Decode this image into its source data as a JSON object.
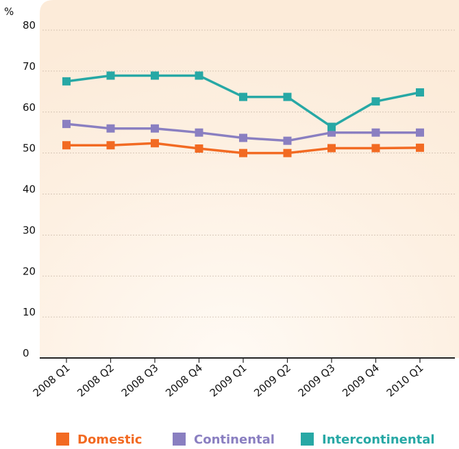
{
  "chart_data": {
    "type": "line",
    "title": "",
    "xlabel": "",
    "ylabel": "%",
    "categories": [
      "2008 Q1",
      "2008 Q2",
      "2008 Q3",
      "2008 Q4",
      "2009 Q1",
      "2009 Q2",
      "2009 Q3",
      "2009 Q4",
      "2010 Q1"
    ],
    "ylim": [
      0,
      80
    ],
    "yticks": [
      "0",
      "10",
      "20",
      "30",
      "40",
      "50",
      "60",
      "70",
      "80"
    ],
    "grid": true,
    "legend_position": "bottom",
    "series": [
      {
        "name": "Domestic",
        "color": "#f26a22",
        "values": [
          51.9,
          51.9,
          52.4,
          51.1,
          50.0,
          50.0,
          51.2,
          51.2,
          51.3
        ]
      },
      {
        "name": "Continental",
        "color": "#8a7fc1",
        "values": [
          57.1,
          56.0,
          56.0,
          55.0,
          53.7,
          53.0,
          55.0,
          55.0,
          55.0
        ]
      },
      {
        "name": "Intercontinental",
        "color": "#27a8a5",
        "values": [
          67.5,
          68.9,
          68.9,
          68.9,
          63.7,
          63.7,
          56.4,
          62.6,
          64.8
        ]
      }
    ],
    "colors": {
      "background_panel": "#fcefe0",
      "gridline": "#c9b8a8",
      "axis": "#222222"
    }
  }
}
